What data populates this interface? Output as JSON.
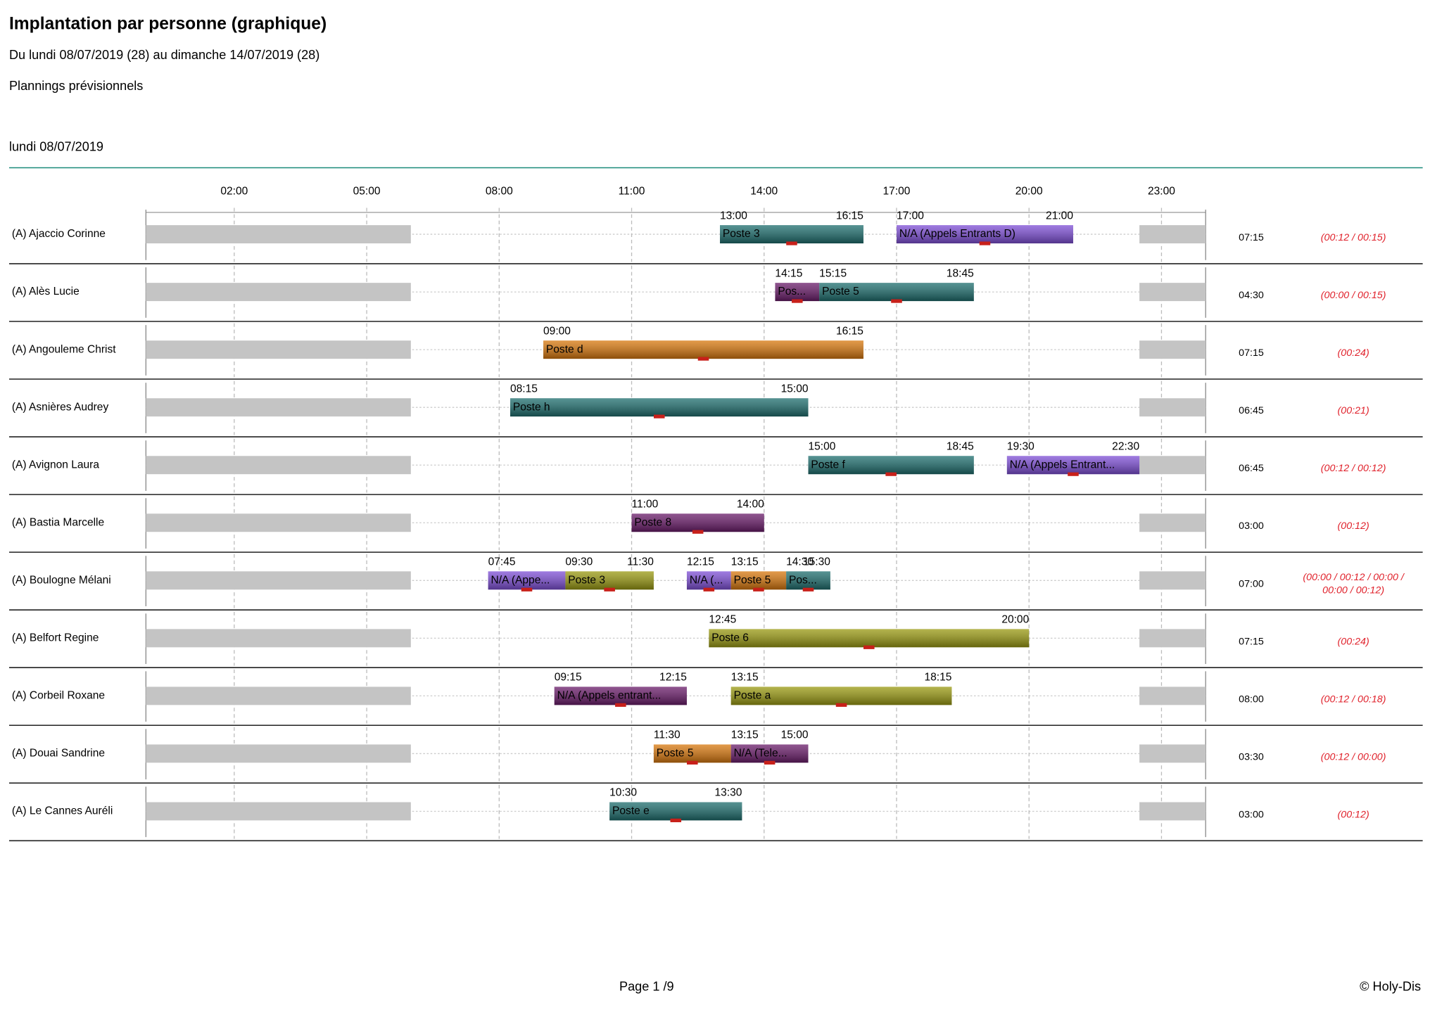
{
  "header": {
    "title": "Implantation par personne (graphique)",
    "subtitle": "Du lundi 08/07/2019 (28) au dimanche 14/07/2019 (28)",
    "plan_type": "Plannings prévisionnels",
    "day": "lundi 08/07/2019"
  },
  "axis": {
    "ticks": [
      "02:00",
      "05:00",
      "08:00",
      "11:00",
      "14:00",
      "17:00",
      "20:00",
      "23:00"
    ]
  },
  "rows": [
    {
      "name": "(A) Ajaccio Corinne",
      "total": "07:15",
      "counters": [
        "(00:12 / 00:15)"
      ],
      "segments": [
        {
          "start": "13:00",
          "end": "16:15",
          "label": "Poste 3",
          "color": "#1e6e6e"
        },
        {
          "start": "17:00",
          "end": "21:00",
          "label": "N/A (Appels Entrants D)",
          "color": "#7e4fd6"
        }
      ]
    },
    {
      "name": "(A) Alès Lucie",
      "total": "04:30",
      "counters": [
        "(00:00 / 00:15)"
      ],
      "segments": [
        {
          "start": "14:15",
          "end": "15:15",
          "label": "Pos...",
          "color": "#6a1c6a"
        },
        {
          "start": "15:15",
          "end": "18:45",
          "label": "Poste 5",
          "color": "#1e6e6e"
        }
      ]
    },
    {
      "name": "(A) Angouleme Christ",
      "total": "07:15",
      "counters": [
        "(00:24)"
      ],
      "segments": [
        {
          "start": "09:00",
          "end": "16:15",
          "label": "Poste d",
          "color": "#d8780e"
        }
      ]
    },
    {
      "name": "(A) Asnières Audrey",
      "total": "06:45",
      "counters": [
        "(00:21)"
      ],
      "segments": [
        {
          "start": "08:15",
          "end": "15:00",
          "label": "Poste h",
          "color": "#1e6e6e"
        }
      ]
    },
    {
      "name": "(A) Avignon Laura",
      "total": "06:45",
      "counters": [
        "(00:12 / 00:12)"
      ],
      "segments": [
        {
          "start": "15:00",
          "end": "18:45",
          "label": "Poste f",
          "color": "#1e6e6e"
        },
        {
          "start": "19:30",
          "end": "22:30",
          "label": "N/A (Appels Entrant...",
          "color": "#7e4fd6"
        }
      ]
    },
    {
      "name": "(A) Bastia Marcelle",
      "total": "03:00",
      "counters": [
        "(00:12)"
      ],
      "segments": [
        {
          "start": "11:00",
          "end": "14:00",
          "label": "Poste 8",
          "color": "#6a1c6a"
        }
      ]
    },
    {
      "name": "(A) Boulogne Mélani",
      "total": "07:00",
      "counters": [
        "(00:00 / 00:12 / 00:00 /",
        "00:00 / 00:12)"
      ],
      "segments": [
        {
          "start": "07:45",
          "end": "09:30",
          "label": "N/A (Appe...",
          "color": "#7e4fd6"
        },
        {
          "start": "09:30",
          "end": "11:30",
          "label": "Poste 3",
          "color": "#9a9a12"
        },
        {
          "start": "12:15",
          "end": "13:15",
          "label": "N/A (...",
          "color": "#7e4fd6"
        },
        {
          "start": "13:15",
          "end": "14:30",
          "label": "Poste 5",
          "color": "#d8780e"
        },
        {
          "start": "14:30",
          "end": "15:30",
          "label": "Pos...",
          "color": "#1e6e6e"
        }
      ]
    },
    {
      "name": "(A) Belfort Regine",
      "total": "07:15",
      "counters": [
        "(00:24)"
      ],
      "segments": [
        {
          "start": "12:45",
          "end": "20:00",
          "label": "Poste 6",
          "color": "#9a9a12"
        }
      ]
    },
    {
      "name": "(A) Corbeil Roxane",
      "total": "08:00",
      "counters": [
        "(00:12 / 00:18)"
      ],
      "segments": [
        {
          "start": "09:15",
          "end": "12:15",
          "label": "N/A (Appels entrant...",
          "color": "#6a1c6a"
        },
        {
          "start": "13:15",
          "end": "18:15",
          "label": "Poste a",
          "color": "#9a9a12"
        }
      ]
    },
    {
      "name": "(A) Douai Sandrine",
      "total": "03:30",
      "counters": [
        "(00:12 / 00:00)"
      ],
      "segments": [
        {
          "start": "11:30",
          "end": "13:15",
          "label": "Poste 5",
          "color": "#d8780e"
        },
        {
          "start": "13:15",
          "end": "15:00",
          "label": "N/A (Tele...",
          "color": "#6a1c6a"
        }
      ]
    },
    {
      "name": "(A) Le Cannes Auréli",
      "total": "03:00",
      "counters": [
        "(00:12)"
      ],
      "segments": [
        {
          "start": "10:30",
          "end": "13:30",
          "label": "Poste e",
          "color": "#1e6e6e"
        }
      ]
    }
  ],
  "footer": {
    "page": "Page 1 /9",
    "copyright": "© Holy-Dis"
  }
}
